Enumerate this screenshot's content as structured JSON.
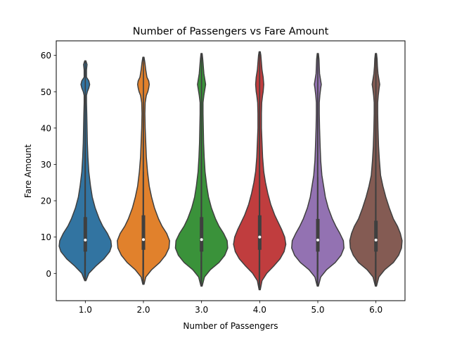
{
  "chart_data": {
    "type": "violin",
    "title": "Number of Passengers vs Fare Amount",
    "xlabel": "Number of Passengers",
    "ylabel": "Fare Amount",
    "categories": [
      "1.0",
      "2.0",
      "3.0",
      "4.0",
      "5.0",
      "6.0"
    ],
    "ylim": [
      -7.5,
      64
    ],
    "yticks": [
      0,
      10,
      20,
      30,
      40,
      50,
      60
    ],
    "grid": false,
    "series": [
      {
        "category": "1.0",
        "color": "#3274a1",
        "min": -2,
        "max": 58.5,
        "q1": 6,
        "median": 9.2,
        "q3": 15.5,
        "whisker_low": 2,
        "whisker_high": 28,
        "profile": [
          [
            -2,
            0.01
          ],
          [
            0,
            0.06
          ],
          [
            2,
            0.18
          ],
          [
            4,
            0.32
          ],
          [
            6,
            0.42
          ],
          [
            7.5,
            0.45
          ],
          [
            9,
            0.44
          ],
          [
            11,
            0.38
          ],
          [
            13,
            0.3
          ],
          [
            15,
            0.24
          ],
          [
            18,
            0.17
          ],
          [
            21,
            0.12
          ],
          [
            24,
            0.09
          ],
          [
            28,
            0.06
          ],
          [
            32,
            0.045
          ],
          [
            36,
            0.035
          ],
          [
            40,
            0.03
          ],
          [
            44,
            0.025
          ],
          [
            47,
            0.02
          ],
          [
            49,
            0.02
          ],
          [
            50,
            0.035
          ],
          [
            51,
            0.06
          ],
          [
            52,
            0.075
          ],
          [
            53,
            0.06
          ],
          [
            54,
            0.02
          ],
          [
            56,
            0.02
          ],
          [
            57.5,
            0.03
          ],
          [
            58.5,
            0.01
          ]
        ]
      },
      {
        "category": "2.0",
        "color": "#e1812c",
        "min": -3,
        "max": 59.5,
        "q1": 6.5,
        "median": 9.3,
        "q3": 16,
        "whisker_low": 1,
        "whisker_high": 28,
        "profile": [
          [
            -3,
            0.01
          ],
          [
            -1,
            0.04
          ],
          [
            1,
            0.14
          ],
          [
            3,
            0.28
          ],
          [
            5,
            0.38
          ],
          [
            7,
            0.44
          ],
          [
            9,
            0.45
          ],
          [
            11,
            0.4
          ],
          [
            13,
            0.32
          ],
          [
            15,
            0.26
          ],
          [
            18,
            0.19
          ],
          [
            21,
            0.14
          ],
          [
            24,
            0.1
          ],
          [
            28,
            0.07
          ],
          [
            32,
            0.05
          ],
          [
            36,
            0.04
          ],
          [
            40,
            0.03
          ],
          [
            44,
            0.025
          ],
          [
            47,
            0.03
          ],
          [
            49,
            0.05
          ],
          [
            50,
            0.075
          ],
          [
            51,
            0.09
          ],
          [
            52,
            0.1
          ],
          [
            53,
            0.09
          ],
          [
            54,
            0.06
          ],
          [
            56,
            0.04
          ],
          [
            58,
            0.025
          ],
          [
            59.5,
            0.01
          ]
        ]
      },
      {
        "category": "3.0",
        "color": "#3a923a",
        "min": -3.5,
        "max": 60.5,
        "q1": 6,
        "median": 9.3,
        "q3": 15.5,
        "whisker_low": 0.5,
        "whisker_high": 27,
        "profile": [
          [
            -3.5,
            0.01
          ],
          [
            -1,
            0.05
          ],
          [
            1,
            0.15
          ],
          [
            3,
            0.3
          ],
          [
            5,
            0.4
          ],
          [
            7,
            0.45
          ],
          [
            9,
            0.44
          ],
          [
            11,
            0.38
          ],
          [
            13,
            0.3
          ],
          [
            15,
            0.24
          ],
          [
            18,
            0.17
          ],
          [
            21,
            0.12
          ],
          [
            24,
            0.09
          ],
          [
            28,
            0.06
          ],
          [
            32,
            0.045
          ],
          [
            36,
            0.035
          ],
          [
            40,
            0.03
          ],
          [
            44,
            0.025
          ],
          [
            47,
            0.025
          ],
          [
            49,
            0.04
          ],
          [
            51,
            0.06
          ],
          [
            52,
            0.07
          ],
          [
            53,
            0.06
          ],
          [
            55,
            0.04
          ],
          [
            57,
            0.03
          ],
          [
            59,
            0.02
          ],
          [
            60.5,
            0.01
          ]
        ]
      },
      {
        "category": "4.0",
        "color": "#c03d3e",
        "min": -4.5,
        "max": 61,
        "q1": 6.5,
        "median": 10,
        "q3": 16,
        "whisker_low": 1,
        "whisker_high": 28,
        "profile": [
          [
            -4.5,
            0.01
          ],
          [
            -2,
            0.04
          ],
          [
            0,
            0.12
          ],
          [
            2,
            0.24
          ],
          [
            4,
            0.35
          ],
          [
            6,
            0.42
          ],
          [
            8,
            0.45
          ],
          [
            10,
            0.43
          ],
          [
            12,
            0.38
          ],
          [
            14,
            0.32
          ],
          [
            16,
            0.26
          ],
          [
            19,
            0.19
          ],
          [
            22,
            0.14
          ],
          [
            25,
            0.1
          ],
          [
            28,
            0.07
          ],
          [
            32,
            0.05
          ],
          [
            36,
            0.04
          ],
          [
            40,
            0.03
          ],
          [
            44,
            0.03
          ],
          [
            47,
            0.035
          ],
          [
            49,
            0.05
          ],
          [
            50,
            0.06
          ],
          [
            52,
            0.07
          ],
          [
            54,
            0.06
          ],
          [
            56,
            0.04
          ],
          [
            58,
            0.03
          ],
          [
            60,
            0.02
          ],
          [
            61,
            0.01
          ]
        ]
      },
      {
        "category": "5.0",
        "color": "#9372b2",
        "min": -3.5,
        "max": 60.5,
        "q1": 6,
        "median": 9.2,
        "q3": 15,
        "whisker_low": 0.5,
        "whisker_high": 26.5,
        "profile": [
          [
            -3.5,
            0.01
          ],
          [
            -1,
            0.05
          ],
          [
            1,
            0.15
          ],
          [
            3,
            0.3
          ],
          [
            5,
            0.4
          ],
          [
            7,
            0.45
          ],
          [
            9,
            0.44
          ],
          [
            11,
            0.38
          ],
          [
            13,
            0.31
          ],
          [
            15,
            0.25
          ],
          [
            18,
            0.18
          ],
          [
            21,
            0.13
          ],
          [
            24,
            0.1
          ],
          [
            27,
            0.07
          ],
          [
            31,
            0.05
          ],
          [
            35,
            0.04
          ],
          [
            40,
            0.03
          ],
          [
            44,
            0.025
          ],
          [
            47,
            0.025
          ],
          [
            49,
            0.035
          ],
          [
            51,
            0.05
          ],
          [
            52,
            0.06
          ],
          [
            53,
            0.05
          ],
          [
            55,
            0.03
          ],
          [
            57,
            0.025
          ],
          [
            59,
            0.02
          ],
          [
            60.5,
            0.01
          ]
        ]
      },
      {
        "category": "6.0",
        "color": "#845b53",
        "min": -3.5,
        "max": 60.5,
        "q1": 6,
        "median": 9.2,
        "q3": 14.5,
        "whisker_low": 0.5,
        "whisker_high": 25,
        "profile": [
          [
            -3.5,
            0.01
          ],
          [
            -1,
            0.05
          ],
          [
            1,
            0.15
          ],
          [
            3,
            0.3
          ],
          [
            5,
            0.39
          ],
          [
            7,
            0.44
          ],
          [
            9,
            0.45
          ],
          [
            11,
            0.42
          ],
          [
            13,
            0.37
          ],
          [
            15,
            0.3
          ],
          [
            18,
            0.23
          ],
          [
            21,
            0.17
          ],
          [
            24,
            0.12
          ],
          [
            27,
            0.08
          ],
          [
            31,
            0.06
          ],
          [
            35,
            0.045
          ],
          [
            40,
            0.035
          ],
          [
            44,
            0.03
          ],
          [
            47,
            0.03
          ],
          [
            49,
            0.04
          ],
          [
            51,
            0.055
          ],
          [
            52,
            0.065
          ],
          [
            53,
            0.055
          ],
          [
            55,
            0.035
          ],
          [
            57,
            0.025
          ],
          [
            59,
            0.02
          ],
          [
            60.5,
            0.01
          ]
        ]
      }
    ]
  }
}
